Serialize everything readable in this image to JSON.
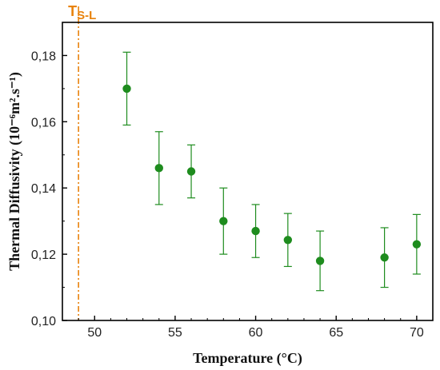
{
  "chart_data": {
    "type": "scatter",
    "title": "",
    "xlabel": "Temperature (°C)",
    "ylabel": "Thermal Diffusivity (10⁻⁶m².s⁻¹)",
    "xlim": [
      48,
      71
    ],
    "ylim": [
      0.1,
      0.19
    ],
    "x_ticks": [
      50,
      55,
      60,
      65,
      70
    ],
    "x_tick_labels": [
      "50",
      "55",
      "60",
      "65",
      "70"
    ],
    "y_ticks": [
      0.1,
      0.12,
      0.14,
      0.16,
      0.18
    ],
    "y_tick_labels": [
      "0,10",
      "0,12",
      "0,14",
      "0,16",
      "0,18"
    ],
    "grid": false,
    "series": [
      {
        "color": "#1E8C1E",
        "x": [
          52,
          54,
          56,
          58,
          60,
          62,
          64,
          68,
          70
        ],
        "y": [
          0.17,
          0.146,
          0.145,
          0.13,
          0.127,
          0.1243,
          0.118,
          0.119,
          0.123
        ],
        "yerr": [
          0.011,
          0.011,
          0.008,
          0.01,
          0.008,
          0.008,
          0.009,
          0.009,
          0.009
        ]
      }
    ],
    "vertical_marker": {
      "label_main": "T",
      "label_sub": "S-L",
      "x": 49,
      "color": "#E8820C"
    }
  }
}
